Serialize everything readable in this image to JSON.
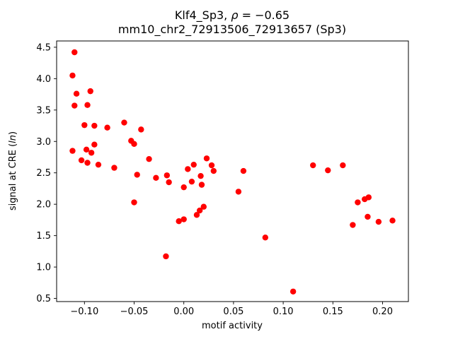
{
  "chart_data": {
    "type": "scatter",
    "title": "Klf4_Sp3, ρ = −0.65",
    "title_prefix": "Klf4_Sp3, ",
    "title_rho": "ρ",
    "title_suffix": " = −0.65",
    "subtitle": "mm10_chr2_72913506_72913657 (Sp3)",
    "xlabel": "motif activity",
    "ylabel": "signal at CRE (ln)",
    "ylabel_part1": "signal at CRE (",
    "ylabel_italic": "ln",
    "ylabel_part2": ")",
    "marker_color": "#ff0000",
    "grid": false,
    "legend": "none",
    "xlim": [
      -0.128,
      0.226
    ],
    "ylim": [
      0.45,
      4.6
    ],
    "xticks": [
      {
        "v": -0.1,
        "label": "−0.10"
      },
      {
        "v": -0.05,
        "label": "−0.05"
      },
      {
        "v": 0.0,
        "label": "0.00"
      },
      {
        "v": 0.05,
        "label": "0.05"
      },
      {
        "v": 0.1,
        "label": "0.10"
      },
      {
        "v": 0.15,
        "label": "0.15"
      },
      {
        "v": 0.2,
        "label": "0.20"
      }
    ],
    "yticks": [
      {
        "v": 0.5,
        "label": "0.5"
      },
      {
        "v": 1.0,
        "label": "1.0"
      },
      {
        "v": 1.5,
        "label": "1.5"
      },
      {
        "v": 2.0,
        "label": "2.0"
      },
      {
        "v": 2.5,
        "label": "2.5"
      },
      {
        "v": 3.0,
        "label": "3.0"
      },
      {
        "v": 3.5,
        "label": "3.5"
      },
      {
        "v": 4.0,
        "label": "4.0"
      },
      {
        "v": 4.5,
        "label": "4.5"
      }
    ],
    "points": [
      [
        -0.11,
        4.42
      ],
      [
        -0.112,
        4.05
      ],
      [
        -0.108,
        3.76
      ],
      [
        -0.094,
        3.8
      ],
      [
        -0.11,
        3.57
      ],
      [
        -0.097,
        3.58
      ],
      [
        -0.1,
        3.26
      ],
      [
        -0.09,
        3.25
      ],
      [
        -0.077,
        3.22
      ],
      [
        -0.06,
        3.3
      ],
      [
        -0.112,
        2.85
      ],
      [
        -0.098,
        2.87
      ],
      [
        -0.09,
        2.95
      ],
      [
        -0.093,
        2.82
      ],
      [
        -0.103,
        2.7
      ],
      [
        -0.097,
        2.66
      ],
      [
        -0.086,
        2.63
      ],
      [
        -0.07,
        2.58
      ],
      [
        -0.053,
        3.01
      ],
      [
        -0.05,
        2.96
      ],
      [
        -0.043,
        3.19
      ],
      [
        -0.047,
        2.47
      ],
      [
        -0.05,
        2.03
      ],
      [
        -0.035,
        2.72
      ],
      [
        -0.028,
        2.42
      ],
      [
        -0.017,
        2.46
      ],
      [
        -0.015,
        2.35
      ],
      [
        -0.018,
        1.17
      ],
      [
        -0.005,
        1.73
      ],
      [
        0.0,
        1.76
      ],
      [
        0.0,
        2.27
      ],
      [
        0.004,
        2.56
      ],
      [
        0.008,
        2.36
      ],
      [
        0.01,
        2.63
      ],
      [
        0.013,
        1.83
      ],
      [
        0.016,
        1.9
      ],
      [
        0.017,
        2.45
      ],
      [
        0.018,
        2.31
      ],
      [
        0.02,
        1.96
      ],
      [
        0.023,
        2.73
      ],
      [
        0.028,
        2.62
      ],
      [
        0.03,
        2.53
      ],
      [
        0.055,
        2.2
      ],
      [
        0.06,
        2.53
      ],
      [
        0.082,
        1.47
      ],
      [
        0.11,
        0.61
      ],
      [
        0.13,
        2.62
      ],
      [
        0.145,
        2.54
      ],
      [
        0.16,
        2.62
      ],
      [
        0.17,
        1.67
      ],
      [
        0.175,
        2.03
      ],
      [
        0.182,
        2.08
      ],
      [
        0.186,
        2.11
      ],
      [
        0.185,
        1.8
      ],
      [
        0.196,
        1.72
      ],
      [
        0.21,
        1.74
      ]
    ]
  }
}
